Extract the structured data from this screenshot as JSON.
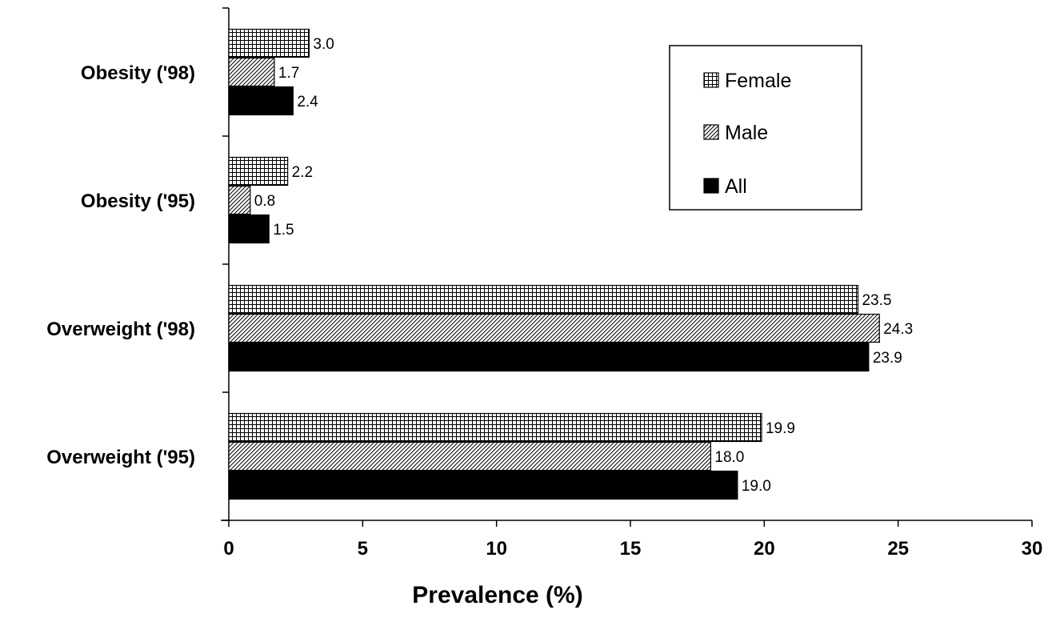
{
  "chart_data": {
    "type": "bar",
    "orientation": "horizontal",
    "categories": [
      "Obesity ('98)",
      "Obesity ('95)",
      "Overweight ('98)",
      "Overweight ('95)"
    ],
    "series": [
      {
        "name": "Female",
        "pattern": "grid",
        "values": [
          3.0,
          2.2,
          23.5,
          19.9
        ]
      },
      {
        "name": "Male",
        "pattern": "diagonal-hatch",
        "values": [
          1.7,
          0.8,
          24.3,
          18.0
        ]
      },
      {
        "name": "All",
        "pattern": "solid-black",
        "values": [
          2.4,
          1.5,
          23.9,
          19.0
        ]
      }
    ],
    "data_labels": [
      [
        "3.0",
        "1.7",
        "2.4"
      ],
      [
        "2.2",
        "0.8",
        "1.5"
      ],
      [
        "23.5",
        "24.3",
        "23.9"
      ],
      [
        "19.9",
        "18.0",
        "19.0"
      ]
    ],
    "xlabel": "Prevalence (%)",
    "ylabel": "",
    "xlim": [
      0,
      30
    ],
    "xticks": [
      0,
      5,
      10,
      15,
      20,
      25,
      30
    ],
    "xtick_labels": [
      "0",
      "5",
      "10",
      "15",
      "20",
      "25",
      "30"
    ],
    "grid": false,
    "legend": {
      "position": "top-right",
      "entries": [
        "Female",
        "Male",
        "All"
      ]
    }
  }
}
